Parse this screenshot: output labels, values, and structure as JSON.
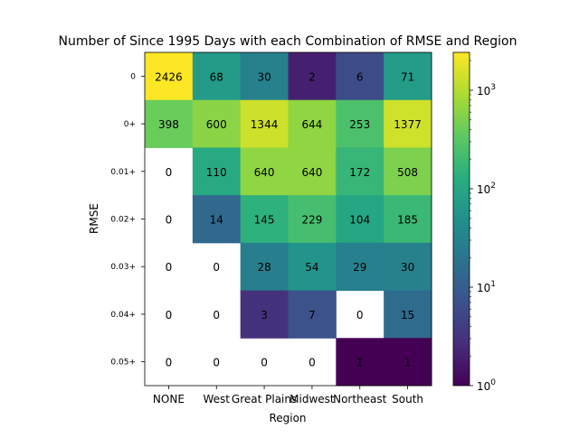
{
  "chart_data": {
    "type": "heatmap",
    "title": "Number of Since 1995 Days with each Combination of RMSE and Region",
    "xlabel": "Region",
    "ylabel": "RMSE",
    "x_categories": [
      "NONE",
      "West",
      "Great Plains",
      "Midwest",
      "Northeast",
      "South"
    ],
    "y_categories": [
      "0",
      "0+",
      "0.01+",
      "0.02+",
      "0.03+",
      "0.04+",
      "0.05+"
    ],
    "values": [
      [
        2426,
        68,
        30,
        2,
        6,
        71
      ],
      [
        398,
        600,
        1344,
        644,
        253,
        1377
      ],
      [
        0,
        110,
        640,
        640,
        172,
        508
      ],
      [
        0,
        14,
        145,
        229,
        104,
        185
      ],
      [
        0,
        0,
        28,
        54,
        29,
        30
      ],
      [
        0,
        0,
        3,
        7,
        0,
        15
      ],
      [
        0,
        0,
        0,
        0,
        1,
        1
      ]
    ],
    "color_scale": "log",
    "colormap": "viridis",
    "colorbar": {
      "range": [
        1,
        2426
      ],
      "ticks": [
        {
          "value": 1,
          "base": "10",
          "exp": "0"
        },
        {
          "value": 10,
          "base": "10",
          "exp": "1"
        },
        {
          "value": 100,
          "base": "10",
          "exp": "2"
        },
        {
          "value": 1000,
          "base": "10",
          "exp": "3"
        }
      ]
    },
    "grid": false
  }
}
